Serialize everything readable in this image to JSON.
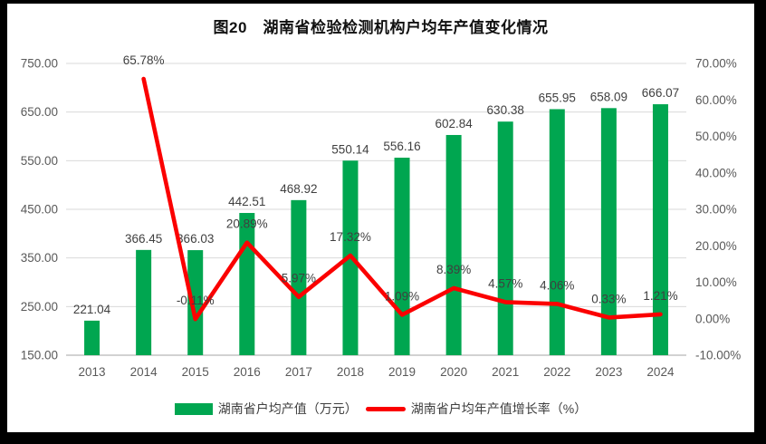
{
  "title": "图20　湖南省检验检测机构户均年产值变化情况",
  "colors": {
    "frame_bg": "#000000",
    "chart_bg": "#ffffff",
    "bar_green": "#00A650",
    "line_red": "#FB0000",
    "gridline": "#d9d9d9",
    "baseline": "#c3c3c3",
    "axis_text": "#595959",
    "label_text": "#3f3f3f"
  },
  "chart_data": {
    "type": "bar+line combo",
    "title": "图20　湖南省检验检测机构户均年产值变化情况",
    "categories": [
      "2013",
      "2014",
      "2015",
      "2016",
      "2017",
      "2018",
      "2019",
      "2020",
      "2021",
      "2022",
      "2023",
      "2024"
    ],
    "series": [
      {
        "name": "湖南省户均产值（万元）",
        "type": "bar",
        "axis": "left",
        "color": "#00A650",
        "values": [
          221.04,
          366.45,
          366.03,
          442.51,
          468.92,
          550.14,
          556.16,
          602.84,
          630.38,
          655.95,
          658.09,
          666.07
        ],
        "labels": [
          "221.04",
          "366.45",
          "366.03",
          "442.51",
          "468.92",
          "550.14",
          "556.16",
          "602.84",
          "630.38",
          "655.95",
          "658.09",
          "666.07"
        ]
      },
      {
        "name": "湖南省户均年产值增长率（%）",
        "type": "line",
        "axis": "right",
        "color": "#FB0000",
        "values": [
          null,
          65.78,
          -0.11,
          20.89,
          5.97,
          17.32,
          1.09,
          8.39,
          4.57,
          4.06,
          0.33,
          1.21
        ],
        "labels": [
          null,
          "65.78%",
          "-0.11%",
          "20.89%",
          "5.97%",
          "17.32%",
          "1.09%",
          "8.39%",
          "4.57%",
          "4.06%",
          "0.33%",
          "1.21%"
        ]
      }
    ],
    "left_axis": {
      "min": 150,
      "max": 750,
      "step": 100,
      "tick_labels": [
        "150.00",
        "250.00",
        "350.00",
        "450.00",
        "550.00",
        "650.00",
        "750.00"
      ]
    },
    "right_axis": {
      "min": -10,
      "max": 70,
      "step": 10,
      "tick_labels": [
        "-10.00%",
        "0.00%",
        "10.00%",
        "20.00%",
        "30.00%",
        "40.00%",
        "50.00%",
        "60.00%",
        "70.00%"
      ]
    },
    "grid": true,
    "legend_position": "bottom"
  }
}
